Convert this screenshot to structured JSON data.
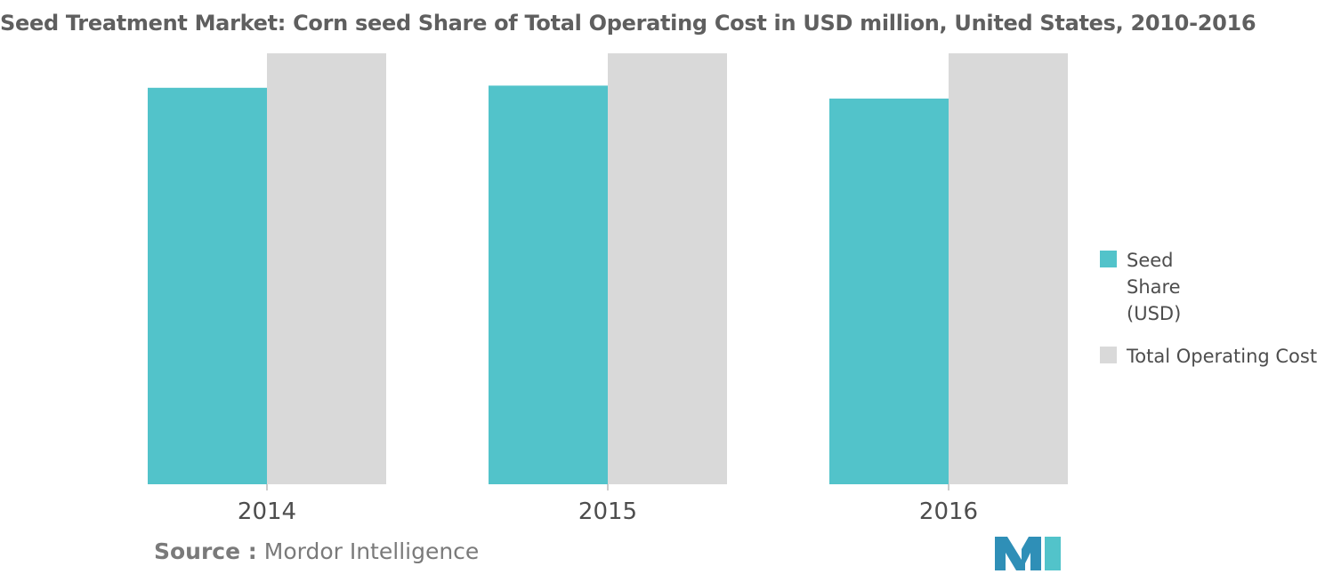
{
  "chart_data": {
    "type": "bar",
    "title": "Seed Treatment Market: Corn seed Share of Total Operating Cost in USD million, United States, 2010-2016",
    "categories": [
      "2014",
      "2015",
      "2016"
    ],
    "series": [
      {
        "name": "Seed Share (USD)",
        "values": [
          92,
          92.5,
          89.5
        ],
        "color": "#52c3ca"
      },
      {
        "name": "Total Operating Cost",
        "values": [
          100,
          100,
          100
        ],
        "color": "#d9d9d9"
      }
    ],
    "xlabel": "",
    "ylabel": "",
    "ylim": [
      0,
      100
    ],
    "grid": false,
    "legend_position": "right"
  },
  "legend": {
    "items": [
      {
        "label": "Seed Share (USD)",
        "color": "#52c3ca"
      },
      {
        "label": "Total Operating Cost",
        "color": "#d9d9d9"
      }
    ]
  },
  "source": {
    "key": "Source :",
    "value": "Mordor Intelligence"
  },
  "logo": {
    "icon": "mordor-intelligence-logo",
    "colors": [
      "#2f8fb7",
      "#52c3ca"
    ]
  }
}
